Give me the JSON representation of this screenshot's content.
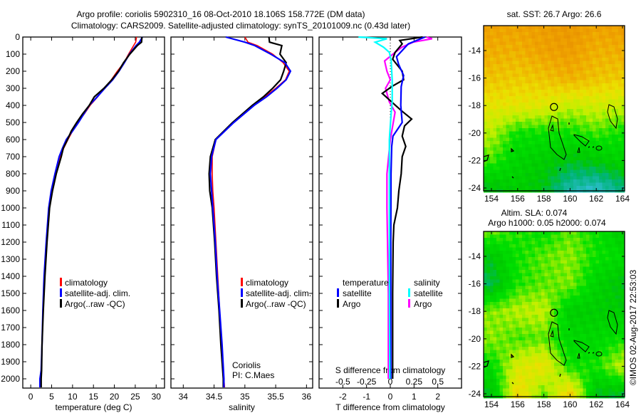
{
  "title": {
    "line1": "Argo profile: coriolis 5902310_16 08-Oct-2010 18.106S 158.772E (DM data)",
    "line2": "Climatology: CARS2009. Satellite-adjusted climatology: synTS_20101009.nc (0.43d later)"
  },
  "colors": {
    "climatology": "#ff0000",
    "satellite": "#0000ff",
    "argo": "#000000",
    "sal_satellite": "#00ffff",
    "sal_argo": "#ff00ff"
  },
  "chart_data": [
    {
      "type": "line",
      "name": "temperature-profile",
      "xlabel": "temperature (deg C)",
      "ylabel": "",
      "xlim": [
        -1.9,
        32
      ],
      "ylim": [
        2054,
        0
      ],
      "xticks": [
        "0",
        "5",
        "10",
        "15",
        "20",
        "25",
        "30"
      ],
      "yticks": [
        "0",
        "100",
        "200",
        "300",
        "400",
        "500",
        "600",
        "700",
        "800",
        "900",
        "1000",
        "1100",
        "1200",
        "1300",
        "1400",
        "1500",
        "1600",
        "1700",
        "1800",
        "1900",
        "2000"
      ],
      "legend": [
        "climatology",
        "satellite-adj. clim.",
        "Argo(..raw -QC)"
      ],
      "depth": [
        0,
        30,
        50,
        100,
        150,
        200,
        250,
        300,
        350,
        400,
        450,
        500,
        550,
        600,
        650,
        700,
        800,
        900,
        1000,
        1200,
        1400,
        1600,
        1800,
        1950,
        2000,
        2050
      ],
      "series": [
        {
          "name": "climatology",
          "color": "#ff0000",
          "values": [
            25.3,
            25.1,
            24.6,
            23.4,
            22.3,
            20.7,
            19.3,
            17.6,
            16.0,
            14.2,
            12.8,
            11.2,
            10.0,
            8.9,
            7.9,
            7.1,
            5.9,
            5.0,
            4.4,
            3.8,
            3.3,
            2.9,
            2.7,
            2.6,
            2.3,
            2.3
          ]
        },
        {
          "name": "satellite-adj. clim.",
          "color": "#0000ff",
          "values": [
            26.7,
            26.0,
            25.2,
            23.6,
            22.4,
            21.1,
            19.6,
            17.7,
            15.9,
            14.0,
            12.7,
            11.4,
            10.0,
            8.5,
            7.6,
            6.8,
            5.8,
            4.9,
            4.3,
            3.7,
            3.2,
            2.9,
            2.7,
            2.5,
            2.2,
            2.2
          ]
        },
        {
          "name": "Argo(..raw -QC)",
          "color": "#000000",
          "values": [
            26.6,
            26.5,
            25.5,
            23.7,
            22.2,
            21.0,
            19.4,
            17.5,
            15.2,
            14.0,
            12.4,
            11.0,
            9.7,
            8.8,
            7.8,
            7.3,
            6.1,
            5.2,
            4.5,
            3.9,
            3.4,
            3.0,
            2.7,
            2.6,
            2.5,
            2.5
          ]
        }
      ]
    },
    {
      "type": "line",
      "name": "salinity-profile",
      "xlabel": "salinity",
      "xlim": [
        33.8,
        36.1
      ],
      "ylim": [
        2054,
        0
      ],
      "xticks": [
        "34",
        "34.5",
        "35",
        "35.5",
        "36"
      ],
      "legend": [
        "climatology",
        "satellite-adj. clim.",
        "Argo(..raw -QC)"
      ],
      "annotation": [
        "Coriolis",
        "PI: C.Maes"
      ],
      "depth": [
        0,
        30,
        50,
        100,
        150,
        200,
        250,
        300,
        350,
        400,
        500,
        600,
        700,
        800,
        900,
        1000,
        1200,
        1400,
        1600,
        1800,
        2000,
        2050
      ],
      "series": [
        {
          "name": "climatology",
          "color": "#ff0000",
          "values": [
            35.0,
            35.05,
            35.2,
            35.45,
            35.62,
            35.72,
            35.66,
            35.5,
            35.32,
            35.12,
            34.8,
            34.53,
            34.47,
            34.47,
            34.48,
            34.5,
            34.53,
            34.56,
            34.59,
            34.62,
            34.66,
            34.67
          ]
        },
        {
          "name": "satellite-adj. clim.",
          "color": "#0000ff",
          "values": [
            34.69,
            35.0,
            35.16,
            35.42,
            35.65,
            35.74,
            35.67,
            35.52,
            35.35,
            35.15,
            34.82,
            34.53,
            34.46,
            34.44,
            34.46,
            34.48,
            34.52,
            34.55,
            34.59,
            34.63,
            34.66,
            34.66
          ]
        },
        {
          "name": "Argo(..raw -QC)",
          "color": "#000000",
          "values": [
            35.39,
            35.4,
            35.6,
            35.57,
            35.67,
            35.63,
            35.58,
            35.45,
            35.3,
            35.12,
            34.8,
            34.52,
            34.44,
            34.42,
            34.43,
            34.47,
            34.51,
            34.54,
            34.58,
            34.61,
            34.65,
            34.65
          ]
        }
      ]
    },
    {
      "type": "line",
      "name": "difference-profile",
      "xlabel": "T difference from climatology",
      "x2label": "S difference from climatology",
      "xlim": [
        -3,
        3
      ],
      "x2lim": [
        -0.75,
        0.75
      ],
      "ylim": [
        2054,
        0
      ],
      "xticks": [
        "-2",
        "-1",
        "0",
        "1",
        "2"
      ],
      "x2ticks": [
        "-0.5",
        "-0.25",
        "0",
        "0.25",
        "0.5"
      ],
      "legend": {
        "temperature": "temperature",
        "salinity": "salinity",
        "satellite": "satellite",
        "argo": "Argo"
      },
      "t_series": {
        "depth": [
          0,
          40,
          115,
          160,
          225,
          290,
          400,
          500,
          580,
          640,
          800,
          1200,
          1600,
          2000
        ],
        "series": [
          {
            "name": "temperature satellite",
            "color": "#0000ff",
            "values": [
              1.46,
              0.76,
              0.26,
              0.35,
              0.56,
              0.46,
              0.44,
              0.5,
              0.11,
              0.06,
              0.03,
              0.02,
              0.02,
              0.02
            ]
          },
          {
            "name": "temperature Argo",
            "color": "#000000",
            "values": [
              1.36,
              0.4,
              0.2,
              0.1,
              0.5,
              0.06,
              -0.34,
              0.9,
              0.5,
              0.65,
              0.46,
              0.15,
              0.1,
              0.1
            ]
          }
        ],
        "argo_depth": [
          0,
          20,
          40,
          90,
          130,
          200,
          250,
          290,
          330,
          380,
          430,
          480,
          520,
          580,
          640,
          700,
          800,
          900,
          1000,
          1100,
          1200,
          1500,
          1800,
          2000
        ],
        "argo_values": [
          1.36,
          0.4,
          0.5,
          0.2,
          0.1,
          0.5,
          0.56,
          0.06,
          -0.34,
          0.06,
          0.46,
          0.9,
          0.6,
          0.5,
          0.65,
          0.5,
          0.46,
          0.36,
          0.3,
          0.15,
          0.12,
          0.1,
          0.1,
          0.1
        ]
      },
      "s_series": {
        "depth": [
          0,
          10,
          30,
          60,
          90,
          140,
          200,
          250,
          300,
          380,
          440,
          600,
          800,
          1000,
          1500,
          2000
        ],
        "series": [
          {
            "name": "salinity satellite",
            "color": "#00ffff",
            "values": [
              -0.335,
              -0.035,
              -0.16,
              -0.07,
              -0.01,
              0.01,
              0.015,
              0.02,
              0.02,
              0.02,
              0.01,
              -0.01,
              -0.01,
              -0.01,
              -0.01,
              -0.005
            ]
          },
          {
            "name": "salinity Argo",
            "color": "#ff00ff",
            "values": [
              0.38,
              0.44,
              0.24,
              0.12,
              0.05,
              -0.06,
              -0.035,
              0.0,
              -0.05,
              -0.01,
              0.05,
              0.0,
              -0.035,
              -0.035,
              -0.02,
              -0.02
            ]
          }
        ]
      }
    },
    {
      "type": "heatmap",
      "name": "sst-map",
      "title": "sat. SST: 26.7 Argo: 26.6",
      "lon_range": [
        153.4,
        164.2
      ],
      "lat_range": [
        -12.2,
        -24.2
      ],
      "lon_ticks": [
        "154",
        "156",
        "158",
        "160",
        "162",
        "164"
      ],
      "lat_ticks": [
        "-14",
        "-16",
        "-18",
        "-20",
        "-22",
        "-24"
      ],
      "grid_lats": [
        -12,
        -14,
        -16,
        -18,
        -20,
        -22,
        -24
      ],
      "grid_lons": [
        154,
        156,
        158,
        160,
        162,
        164
      ],
      "color_level": [
        [
          0.9,
          0.9,
          0.92,
          0.95,
          0.9,
          0.92
        ],
        [
          0.86,
          0.85,
          0.9,
          0.92,
          0.85,
          0.86
        ],
        [
          0.8,
          0.78,
          0.8,
          0.85,
          0.8,
          0.78
        ],
        [
          0.7,
          0.7,
          0.68,
          0.62,
          0.65,
          0.62
        ],
        [
          0.6,
          0.45,
          0.45,
          0.45,
          0.5,
          0.45
        ],
        [
          0.5,
          0.38,
          0.35,
          0.3,
          0.33,
          0.38
        ],
        [
          0.3,
          0.36,
          0.3,
          0.12,
          0.08,
          0.2
        ]
      ],
      "argo_position": {
        "lon": 158.772,
        "lat": -18.106
      }
    },
    {
      "type": "heatmap",
      "name": "sla-map",
      "title": "Altim. SLA: 0.074",
      "subtitle": "Argo h1000: 0.05 h2000: 0.074",
      "lon_range": [
        153.4,
        164.2
      ],
      "lat_range": [
        -12.2,
        -24.2
      ],
      "lon_ticks": [
        "154",
        "156",
        "158",
        "160",
        "162",
        "164"
      ],
      "lat_ticks": [
        "-14",
        "-16",
        "-18",
        "-20",
        "-22",
        "-24"
      ],
      "grid_lats": [
        -12,
        -14,
        -16,
        -18,
        -20,
        -22,
        -24
      ],
      "grid_lons": [
        154,
        156,
        158,
        160,
        162,
        164
      ],
      "color_level": [
        [
          0.55,
          0.48,
          0.42,
          0.52,
          0.45,
          0.32
        ],
        [
          0.32,
          0.45,
          0.52,
          0.56,
          0.45,
          0.42
        ],
        [
          0.24,
          0.47,
          0.52,
          0.55,
          0.38,
          0.3
        ],
        [
          0.55,
          0.6,
          0.62,
          0.35,
          0.35,
          0.34
        ],
        [
          0.56,
          0.5,
          0.52,
          0.4,
          0.4,
          0.45
        ],
        [
          0.42,
          0.66,
          0.72,
          0.45,
          0.46,
          0.62
        ],
        [
          0.3,
          0.76,
          0.52,
          0.78,
          0.3,
          0.28
        ]
      ],
      "argo_position": {
        "lon": 158.772,
        "lat": -18.106
      }
    }
  ],
  "credit": "©IMOS 02-Aug-2017 22:53:03"
}
